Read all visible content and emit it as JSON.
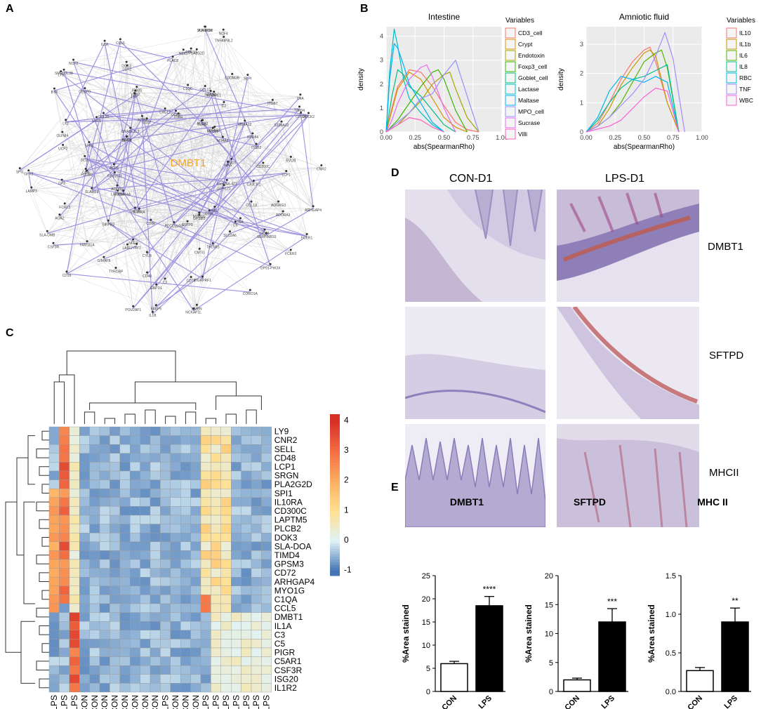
{
  "panels": {
    "a": "A",
    "b": "B",
    "c": "C",
    "d": "D",
    "e": "E"
  },
  "network": {
    "hub_label": "DMBT1",
    "hub_color": "#f5a623",
    "edge_color": "#9b8fe0",
    "nodes": [
      "ARHGAP4",
      "ADGRG3",
      "IGA",
      "MYO1G",
      "CORO1A",
      "CD74",
      "CMTG",
      "PDCD1LG2",
      "IL1B",
      "TYROBP",
      "NFE2",
      "LAPTM5",
      "SLA-DMB",
      "AOA2",
      "CD4",
      "ACP5",
      "BTK",
      "LYZ",
      "CCL20",
      "CD37",
      "IL1A",
      "PLAC8",
      "C1QC",
      "CCR2",
      "NCF4",
      "SLPI",
      "C2",
      "MYO1F",
      "CD209",
      "EVI2B",
      "CD300C",
      "snoRNA-421",
      "FCER2",
      "SERPINB10",
      "C5",
      "CTRL",
      "AMBN",
      "GBP1IL",
      "CYLB",
      "CD8E",
      "POU2AF1",
      "GIMAP8",
      "SIRPB2",
      "ACOD1",
      "GFX2",
      "GP2",
      "SELL",
      "RETN",
      "SMPD3L3B",
      "CEBPD",
      "LBP",
      "ACP5",
      "CCL5",
      "NEK5",
      "CCL17",
      "TLR2",
      "TNFAIP8L2",
      "EDDM3B",
      "GPR84",
      "MS4A4",
      "DOCK2",
      "LCP1",
      "CX3CR1",
      "GPR171",
      "FCER1",
      "CD14",
      "SLC2A6",
      "GPSM3",
      "NCKAP1L",
      "CD48",
      "VAV1",
      "SRGN",
      "CD16",
      "FAM111A",
      "SLAMF8",
      "SEMA4A",
      "LAMP3",
      "UCP2",
      "SPN2",
      "DNASE1L3",
      "LY9",
      "CD72",
      "ISG20",
      "CXCL2",
      "ADGRD2",
      "GPR31",
      "ADGRE1",
      "C5AR1",
      "C4A",
      "S100A12",
      "MS4A12",
      "ENO1",
      "CNR2",
      "ADORA3",
      "CCL19",
      "HAL",
      "GP91-PHOX",
      "PIGRPRF1",
      "THEMIS",
      "SFTPD",
      "FABP5",
      "C3",
      "LAIR1",
      "IL10RA",
      "CSF3R",
      "FCRL3",
      "FCGR2",
      "RP11073",
      "SPI1",
      "OLFM4",
      "NCF1",
      "SLA-8",
      "NCF2",
      "DOK3",
      "VNN2",
      "ITIH4",
      "SLA-DOA",
      "PLA2G2D",
      "NFAM1",
      "PLCB2",
      "TIMD4",
      "ITGB7",
      "ITGB2",
      "WAS"
    ]
  },
  "density_left": {
    "title": "Intestine",
    "xlabel": "abs(SpearmanRho)",
    "ylabel": "density",
    "legend_title": "Variables",
    "xticks": [
      "0.00",
      "0.25",
      "0.50",
      "0.75",
      "1.00"
    ],
    "yticks": [
      "0",
      "1",
      "2",
      "3",
      "4"
    ]
  },
  "density_right": {
    "title": "Amniotic fluid",
    "xlabel": "abs(SpearmanRho)",
    "ylabel": "density",
    "legend_title": "Variables",
    "xticks": [
      "0.00",
      "0.25",
      "0.50",
      "0.75",
      "1.00"
    ],
    "yticks": [
      "0",
      "1",
      "2",
      "3"
    ]
  },
  "heatmap": {
    "genes": [
      "LY9",
      "CNR2",
      "SELL",
      "CD48",
      "LCP1",
      "SRGN",
      "PLA2G2D",
      "SPI1",
      "IL10RA",
      "CD300C",
      "LAPTM5",
      "PLCB2",
      "DOK3",
      "SLA-DOA",
      "TIMD4",
      "GPSM3",
      "CD72",
      "ARHGAP4",
      "MYO1G",
      "C1QA",
      "CCL5",
      "DMBT1",
      "IL1A",
      "C3",
      "C5",
      "PIGR",
      "C5AR1",
      "CSF3R",
      "ISG20",
      "IL1R2"
    ],
    "samples": [
      "LPS",
      "LPS",
      "LPS",
      "CON",
      "CON",
      "CON",
      "CON",
      "CON",
      "CON",
      "CON",
      "CON",
      "LPS",
      "CON",
      "CON",
      "CON",
      "LPS",
      "LPS",
      "LPS",
      "LPS",
      "LPS",
      "LPS",
      "LPS"
    ],
    "colorbar_ticks": [
      "4",
      "3",
      "2",
      "1",
      "0",
      "-1"
    ]
  },
  "ihc": {
    "col1": "CON-D1",
    "col2": "LPS-D1",
    "rows": [
      "DMBT1",
      "SFTPD",
      "MHCII"
    ]
  },
  "chart_data": [
    {
      "type": "line",
      "title": "Intestine",
      "xlabel": "abs(SpearmanRho)",
      "ylabel": "density",
      "xlim": [
        0,
        1
      ],
      "ylim": [
        0,
        4.4
      ],
      "series": [
        {
          "name": "CD3_cell",
          "color": "#F8766D",
          "x": [
            0,
            0.05,
            0.1,
            0.2,
            0.3,
            0.4,
            0.5,
            0.6,
            0.7,
            0.8
          ],
          "y": [
            0,
            1.0,
            1.9,
            2.6,
            2.5,
            1.9,
            1.1,
            0.4,
            0.1,
            0
          ]
        },
        {
          "name": "Crypt",
          "color": "#D89000",
          "x": [
            0,
            0.05,
            0.1,
            0.2,
            0.3,
            0.4,
            0.5,
            0.6,
            0.7
          ],
          "y": [
            0,
            0.9,
            1.8,
            2.5,
            2.2,
            1.4,
            0.6,
            0.2,
            0
          ]
        },
        {
          "name": "Endotoxin",
          "color": "#A3A500",
          "x": [
            0,
            0.1,
            0.2,
            0.3,
            0.4,
            0.5,
            0.55,
            0.6,
            0.7,
            0.8
          ],
          "y": [
            0,
            0.3,
            0.8,
            1.3,
            2.0,
            2.4,
            2.5,
            1.8,
            0.6,
            0
          ]
        },
        {
          "name": "Foxp3_cell",
          "color": "#39B600",
          "x": [
            0,
            0.1,
            0.2,
            0.3,
            0.4,
            0.45,
            0.5,
            0.6,
            0.7
          ],
          "y": [
            0,
            0.5,
            1.2,
            1.9,
            2.5,
            2.6,
            2.2,
            0.9,
            0
          ]
        },
        {
          "name": "Goblet_cell",
          "color": "#00BF7D",
          "x": [
            0,
            0.05,
            0.1,
            0.15,
            0.2,
            0.3,
            0.4,
            0.5,
            0.6
          ],
          "y": [
            0,
            1.5,
            2.6,
            2.4,
            1.9,
            1.5,
            0.9,
            0.3,
            0
          ]
        },
        {
          "name": "Lactase",
          "color": "#00BFC4",
          "x": [
            0,
            0.03,
            0.07,
            0.1,
            0.15,
            0.2,
            0.3,
            0.4,
            0.5
          ],
          "y": [
            0,
            2.5,
            4.3,
            3.6,
            2.2,
            1.4,
            0.8,
            0.3,
            0
          ]
        },
        {
          "name": "Maltase",
          "color": "#00B0F6",
          "x": [
            0,
            0.03,
            0.07,
            0.1,
            0.15,
            0.2,
            0.3,
            0.4,
            0.5
          ],
          "y": [
            0,
            2.2,
            3.7,
            3.5,
            2.8,
            2.0,
            1.2,
            0.4,
            0
          ]
        },
        {
          "name": "MPO_cell",
          "color": "#9590FF",
          "x": [
            0,
            0.1,
            0.2,
            0.3,
            0.4,
            0.5,
            0.6,
            0.7,
            0.8
          ],
          "y": [
            0,
            0.4,
            0.8,
            1.4,
            1.6,
            2.4,
            3.0,
            1.5,
            0
          ]
        },
        {
          "name": "Sucrase",
          "color": "#E76BF3",
          "x": [
            0,
            0.05,
            0.1,
            0.2,
            0.3,
            0.35,
            0.4,
            0.5,
            0.6
          ],
          "y": [
            0,
            0.5,
            1.2,
            2.2,
            2.7,
            2.8,
            2.3,
            1.0,
            0
          ]
        },
        {
          "name": "Villi",
          "color": "#FF62BC",
          "x": [
            0,
            0.1,
            0.2,
            0.3,
            0.4,
            0.5
          ],
          "y": [
            0,
            0.3,
            0.6,
            0.5,
            0.2,
            0
          ]
        }
      ]
    },
    {
      "type": "line",
      "title": "Amniotic fluid",
      "xlabel": "abs(SpearmanRho)",
      "ylabel": "density",
      "xlim": [
        0,
        1
      ],
      "ylim": [
        0,
        3.6
      ],
      "series": [
        {
          "name": "IL10",
          "color": "#F8766D",
          "x": [
            0,
            0.1,
            0.2,
            0.3,
            0.4,
            0.5,
            0.55,
            0.6,
            0.7,
            0.8
          ],
          "y": [
            0,
            0.3,
            1.0,
            1.8,
            2.4,
            2.8,
            2.9,
            2.4,
            1.0,
            0
          ]
        },
        {
          "name": "IL1b",
          "color": "#C49A00",
          "x": [
            0,
            0.1,
            0.2,
            0.3,
            0.4,
            0.5,
            0.55,
            0.6,
            0.7,
            0.8
          ],
          "y": [
            0,
            0.2,
            0.8,
            1.6,
            2.2,
            2.7,
            2.8,
            2.6,
            1.0,
            0
          ]
        },
        {
          "name": "IL6",
          "color": "#53B400",
          "x": [
            0,
            0.1,
            0.2,
            0.3,
            0.4,
            0.5,
            0.6,
            0.65,
            0.7,
            0.8
          ],
          "y": [
            0,
            0.2,
            0.5,
            1.0,
            1.7,
            2.4,
            2.7,
            2.8,
            2.2,
            0
          ]
        },
        {
          "name": "IL8",
          "color": "#00C094",
          "x": [
            0,
            0.1,
            0.2,
            0.3,
            0.4,
            0.5,
            0.6,
            0.7,
            0.8
          ],
          "y": [
            0,
            0.4,
            1.0,
            1.5,
            1.8,
            1.9,
            2.1,
            2.3,
            0
          ]
        },
        {
          "name": "RBC",
          "color": "#00B6EB",
          "x": [
            0,
            0.1,
            0.2,
            0.3,
            0.4,
            0.5,
            0.6,
            0.7,
            0.8
          ],
          "y": [
            0,
            0.5,
            1.4,
            1.9,
            1.8,
            1.7,
            1.9,
            1.7,
            0
          ]
        },
        {
          "name": "TNF",
          "color": "#A58AFF",
          "x": [
            0,
            0.1,
            0.2,
            0.3,
            0.4,
            0.5,
            0.6,
            0.68,
            0.75,
            0.85
          ],
          "y": [
            0,
            0.2,
            0.5,
            0.9,
            1.3,
            1.8,
            2.6,
            3.4,
            2.5,
            0
          ]
        },
        {
          "name": "WBC",
          "color": "#FB61D7",
          "x": [
            0,
            0.1,
            0.2,
            0.3,
            0.4,
            0.5,
            0.6,
            0.7,
            0.8
          ],
          "y": [
            0,
            0.1,
            0.2,
            0.4,
            0.8,
            1.2,
            1.5,
            1.4,
            0
          ]
        }
      ]
    },
    {
      "type": "bar",
      "title": "DMBT1",
      "ylabel": "%Area stained",
      "categories": [
        "CON",
        "LPS"
      ],
      "values": [
        6,
        18.5
      ],
      "errors": [
        0.5,
        2.0
      ],
      "ylim": [
        0,
        25
      ],
      "yticks": [
        "0",
        "5",
        "10",
        "15",
        "20",
        "25"
      ],
      "significance": "****"
    },
    {
      "type": "bar",
      "title": "SFTPD",
      "ylabel": "%Area stained",
      "categories": [
        "CON",
        "LPS"
      ],
      "values": [
        2,
        12
      ],
      "errors": [
        0.3,
        2.3
      ],
      "ylim": [
        0,
        20
      ],
      "yticks": [
        "0",
        "5",
        "10",
        "15",
        "20"
      ],
      "significance": "***"
    },
    {
      "type": "bar",
      "title": "MHC II",
      "ylabel": "%Area stained",
      "categories": [
        "CON",
        "LPS"
      ],
      "values": [
        0.27,
        0.9
      ],
      "errors": [
        0.04,
        0.18
      ],
      "ylim": [
        0,
        1.5
      ],
      "yticks": [
        "0.0",
        "0.5",
        "1.0",
        "1.5"
      ],
      "significance": "**"
    }
  ]
}
